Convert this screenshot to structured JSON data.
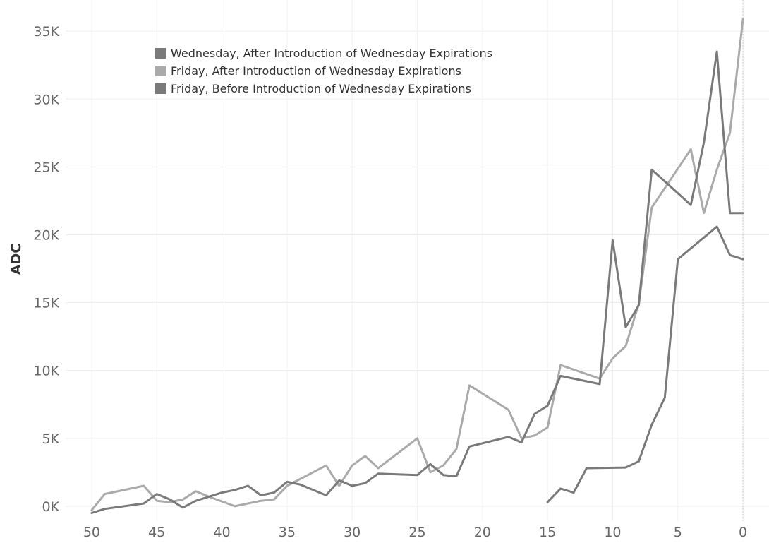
{
  "chart_data": {
    "type": "line",
    "title": "",
    "xlabel": "",
    "ylabel": "ADC",
    "x_reversed": true,
    "xlim": [
      52,
      -2
    ],
    "ylim": [
      -1100,
      37300
    ],
    "xticks": [
      50,
      45,
      40,
      35,
      30,
      25,
      20,
      15,
      10,
      5,
      0
    ],
    "xtick_labels": [
      "50",
      "45",
      "40",
      "35",
      "30",
      "25",
      "20",
      "15",
      "10",
      "5",
      "0"
    ],
    "yticks": [
      0,
      5000,
      10000,
      15000,
      20000,
      25000,
      30000,
      35000
    ],
    "ytick_labels": [
      "0K",
      "5K",
      "10K",
      "15K",
      "20K",
      "25K",
      "30K",
      "35K"
    ],
    "grid": true,
    "legend_position": "top-left",
    "series": [
      {
        "name": "Wednesday, After Introduction of Wednesday Expirations",
        "color": "#7a7a7a",
        "x": [
          15,
          14,
          13,
          12,
          9,
          8,
          7,
          6,
          5,
          2,
          1,
          0
        ],
        "y": [
          300,
          1300,
          1000,
          2800,
          2850,
          3300,
          6000,
          8000,
          18200,
          20600,
          18500,
          18200
        ]
      },
      {
        "name": "Friday, After Introduction of Wednesday Expirations",
        "color": "#aaaaaa",
        "x": [
          50,
          49,
          46,
          45,
          44,
          43,
          42,
          41,
          39,
          38,
          37,
          36,
          35,
          34,
          33,
          32,
          31,
          30,
          29,
          28,
          25,
          24,
          23,
          22,
          21,
          18,
          17,
          16,
          15,
          14,
          11,
          10,
          9,
          8,
          7,
          4,
          3,
          2,
          1,
          0
        ],
        "y": [
          -300,
          900,
          1500,
          400,
          300,
          500,
          1100,
          700,
          0,
          200,
          400,
          500,
          1500,
          2000,
          2500,
          3000,
          1500,
          3000,
          3700,
          2800,
          5000,
          2500,
          3000,
          4200,
          8900,
          7100,
          5000,
          5200,
          5800,
          10400,
          9400,
          10900,
          11800,
          14900,
          22000,
          26300,
          21600,
          24800,
          27500,
          35900
        ]
      },
      {
        "name": "Friday, Before Introduction of Wednesday Expirations",
        "color": "#7a7a7a",
        "x": [
          50,
          49,
          46,
          45,
          44,
          43,
          42,
          41,
          40,
          39,
          38,
          37,
          36,
          35,
          34,
          33,
          32,
          31,
          30,
          29,
          28,
          25,
          24,
          23,
          22,
          21,
          18,
          17,
          16,
          15,
          14,
          11,
          10,
          9,
          8,
          7,
          4,
          3,
          2,
          1,
          0
        ],
        "y": [
          -500,
          -200,
          200,
          900,
          500,
          -100,
          400,
          700,
          1000,
          1200,
          1500,
          800,
          1000,
          1800,
          1600,
          1200,
          800,
          1900,
          1500,
          1700,
          2400,
          2300,
          3100,
          2300,
          2200,
          4400,
          5100,
          4700,
          6800,
          7400,
          9600,
          9000,
          19600,
          13200,
          14800,
          24800,
          22200,
          26800,
          33500,
          21600,
          21600
        ]
      }
    ]
  }
}
